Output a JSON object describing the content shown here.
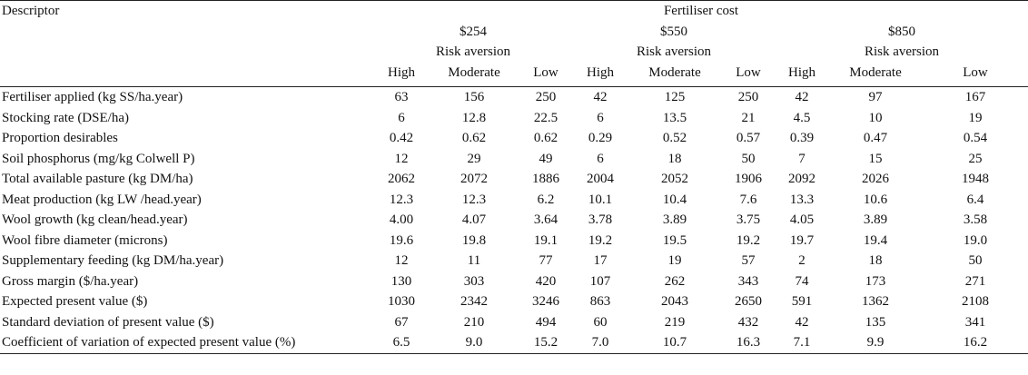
{
  "header": {
    "descriptor_label": "Descriptor",
    "group_label": "Fertiliser cost",
    "cost_groups": [
      {
        "cost": "$254",
        "sub": "Risk aversion"
      },
      {
        "cost": "$550",
        "sub": "Risk aversion"
      },
      {
        "cost": "$850",
        "sub": "Risk aversion"
      }
    ],
    "levels": [
      "High",
      "Moderate",
      "Low",
      "High",
      "Moderate",
      "Low",
      "High",
      "Moderate",
      "Low"
    ]
  },
  "rows": [
    {
      "label": "Fertiliser applied (kg SS/ha.year)",
      "values": [
        "63",
        "156",
        "250",
        "42",
        "125",
        "250",
        "42",
        "97",
        "167"
      ]
    },
    {
      "label": "Stocking rate (DSE/ha)",
      "values": [
        "6",
        "12.8",
        "22.5",
        "6",
        "13.5",
        "21",
        "4.5",
        "10",
        "19"
      ]
    },
    {
      "label": "Proportion desirables",
      "values": [
        "0.42",
        "0.62",
        "0.62",
        "0.29",
        "0.52",
        "0.57",
        "0.39",
        "0.47",
        "0.54"
      ]
    },
    {
      "label": "Soil phosphorus (mg/kg Colwell P)",
      "values": [
        "12",
        "29",
        "49",
        "6",
        "18",
        "50",
        "7",
        "15",
        "25"
      ]
    },
    {
      "label": "Total available pasture (kg DM/ha)",
      "values": [
        "2062",
        "2072",
        "1886",
        "2004",
        "2052",
        "1906",
        "2092",
        "2026",
        "1948"
      ]
    },
    {
      "label": "Meat production (kg LW /head.year)",
      "values": [
        "12.3",
        "12.3",
        "6.2",
        "10.1",
        "10.4",
        "7.6",
        "13.3",
        "10.6",
        "6.4"
      ]
    },
    {
      "label": "Wool growth (kg clean/head.year)",
      "values": [
        "4.00",
        "4.07",
        "3.64",
        "3.78",
        "3.89",
        "3.75",
        "4.05",
        "3.89",
        "3.58"
      ]
    },
    {
      "label": "Wool fibre diameter (microns)",
      "values": [
        "19.6",
        "19.8",
        "19.1",
        "19.2",
        "19.5",
        "19.2",
        "19.7",
        "19.4",
        "19.0"
      ]
    },
    {
      "label": "Supplementary feeding (kg DM/ha.year)",
      "values": [
        "12",
        "11",
        "77",
        "17",
        "19",
        "57",
        "2",
        "18",
        "50"
      ]
    },
    {
      "label": "Gross margin ($/ha.year)",
      "values": [
        "130",
        "303",
        "420",
        "107",
        "262",
        "343",
        "74",
        "173",
        "271"
      ]
    },
    {
      "label": "Expected present value ($)",
      "values": [
        "1030",
        "2342",
        "3246",
        "863",
        "2043",
        "2650",
        "591",
        "1362",
        "2108"
      ]
    },
    {
      "label": "Standard deviation of present value ($)",
      "values": [
        "67",
        "210",
        "494",
        "60",
        "219",
        "432",
        "42",
        "135",
        "341"
      ]
    },
    {
      "label": "Coefficient of variation of expected present value (%)",
      "values": [
        "6.5",
        "9.0",
        "15.2",
        "7.0",
        "10.7",
        "16.3",
        "7.1",
        "9.9",
        "16.2"
      ]
    }
  ]
}
